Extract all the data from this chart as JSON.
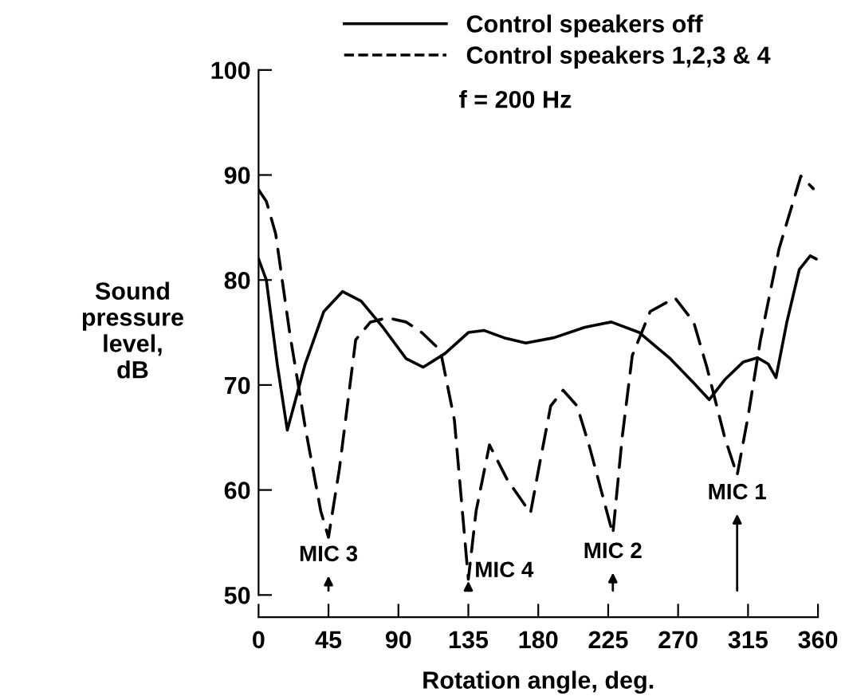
{
  "chart_data": {
    "type": "line",
    "xlabel": "Rotation angle, deg.",
    "ylabel": "Sound\npressure\nlevel,\ndB",
    "xlim": [
      0,
      360
    ],
    "xticks": [
      0,
      45,
      90,
      135,
      180,
      225,
      270,
      315,
      360
    ],
    "ylim": [
      50,
      100
    ],
    "yticks": [
      50,
      60,
      70,
      80,
      90,
      100
    ],
    "grid": false,
    "legend": "top right",
    "marker": "none",
    "series": [
      {
        "name": "Control speakers off",
        "color": "#000000",
        "line_style": "solid",
        "x": [
          0,
          5,
          12,
          18.5,
          30,
          42,
          54,
          66,
          80,
          95,
          106,
          120,
          135,
          145,
          158,
          172,
          190,
          210,
          227,
          245,
          265,
          280,
          290,
          300,
          312,
          321,
          328,
          333,
          340,
          348,
          355,
          359
        ],
        "values": [
          82,
          80,
          72,
          65.7,
          72,
          77,
          78.9,
          78,
          75.5,
          72.5,
          71.7,
          73,
          75,
          75.2,
          74.5,
          74,
          74.5,
          75.5,
          76,
          75,
          72.5,
          70.2,
          68.6,
          70.5,
          72.2,
          72.6,
          72,
          70.7,
          76,
          81,
          82.3,
          82
        ]
      },
      {
        "name": "Control speakers 1,2,3 & 4",
        "color": "#000000",
        "line_style": "dashed",
        "x": [
          0,
          5,
          11,
          20,
          30,
          40,
          45,
          52,
          62.5,
          72,
          83,
          95,
          105,
          117,
          126,
          135,
          140,
          148.6,
          160,
          175,
          180.5,
          188,
          196,
          205,
          213,
          228,
          234,
          240.5,
          252,
          268,
          280,
          288.5,
          300,
          308,
          315,
          323,
          335,
          349,
          357
        ],
        "values": [
          88.6,
          87.5,
          84.4,
          75,
          66,
          58,
          55.5,
          62,
          74.3,
          76,
          76.4,
          76,
          75,
          73.3,
          66.7,
          51.5,
          58,
          64.3,
          61,
          57.8,
          62.2,
          68,
          69.5,
          68,
          64.1,
          55.8,
          65,
          72.8,
          77,
          78.3,
          76,
          71.7,
          65,
          61.4,
          67,
          74.3,
          83,
          89.9,
          88.7
        ]
      }
    ],
    "annotations": [
      {
        "text": "MIC 3",
        "x": 45,
        "y": 55.5
      },
      {
        "text": "MIC 4",
        "x": 135,
        "y": 51.5
      },
      {
        "text": "MIC 2",
        "x": 228,
        "y": 55.8
      },
      {
        "text": "MIC 1",
        "x": 308,
        "y": 61.4
      },
      "f = 200 Hz"
    ]
  }
}
